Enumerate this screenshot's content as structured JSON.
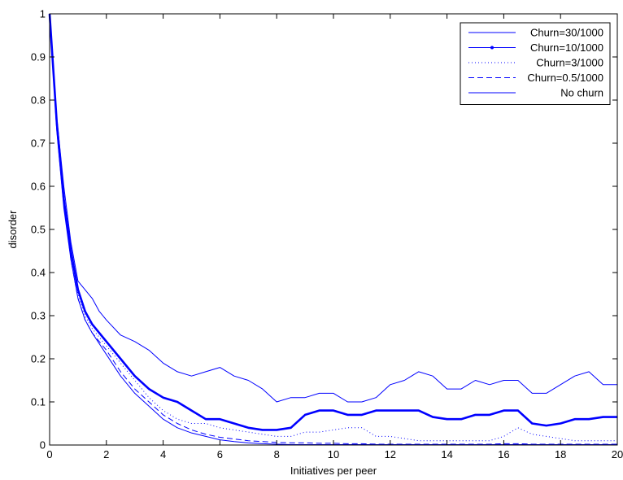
{
  "chart_data": {
    "type": "line",
    "title": "",
    "xlabel": "Initiatives per peer",
    "ylabel": "disorder",
    "xlim": [
      0,
      20
    ],
    "ylim": [
      0,
      1
    ],
    "xticks": [
      0,
      2,
      4,
      6,
      8,
      10,
      12,
      14,
      16,
      18,
      20
    ],
    "yticks": [
      0,
      0.1,
      0.2,
      0.3,
      0.4,
      0.5,
      0.6,
      0.7,
      0.8,
      0.9,
      1
    ],
    "xtick_labels": [
      "0",
      "2",
      "4",
      "6",
      "8",
      "10",
      "12",
      "14",
      "16",
      "18",
      "20"
    ],
    "ytick_labels": [
      "0",
      "0.1",
      "0.2",
      "0.3",
      "0.4",
      "0.5",
      "0.6",
      "0.7",
      "0.8",
      "0.9",
      "1"
    ],
    "grid": false,
    "legend_position": "top-right",
    "line_color": "#0000ff",
    "series": [
      {
        "name": "Churn=30/1000",
        "style": "solid-thin",
        "x": [
          0,
          0.25,
          0.5,
          0.75,
          1,
          1.25,
          1.5,
          1.75,
          2,
          2.5,
          3,
          3.5,
          4,
          4.5,
          5,
          5.5,
          6,
          6.5,
          7,
          7.5,
          8,
          8.5,
          9,
          9.5,
          10,
          10.5,
          11,
          11.5,
          12,
          12.5,
          13,
          13.5,
          14,
          14.5,
          15,
          15.5,
          16,
          16.5,
          17,
          17.5,
          18,
          18.5,
          19,
          19.5,
          20
        ],
        "y": [
          1.0,
          0.76,
          0.6,
          0.47,
          0.38,
          0.36,
          0.34,
          0.31,
          0.29,
          0.255,
          0.24,
          0.22,
          0.19,
          0.17,
          0.16,
          0.17,
          0.18,
          0.16,
          0.15,
          0.13,
          0.1,
          0.11,
          0.11,
          0.12,
          0.12,
          0.1,
          0.1,
          0.11,
          0.14,
          0.15,
          0.17,
          0.16,
          0.13,
          0.13,
          0.15,
          0.14,
          0.15,
          0.15,
          0.12,
          0.12,
          0.14,
          0.16,
          0.17,
          0.14,
          0.14
        ]
      },
      {
        "name": "Churn=10/1000",
        "style": "solid-thick",
        "x": [
          0,
          0.25,
          0.5,
          0.75,
          1,
          1.25,
          1.5,
          1.75,
          2,
          2.5,
          3,
          3.5,
          4,
          4.5,
          5,
          5.5,
          6,
          6.5,
          7,
          7.5,
          8,
          8.5,
          9,
          9.5,
          10,
          10.5,
          11,
          11.5,
          12,
          12.5,
          13,
          13.5,
          14,
          14.5,
          15,
          15.5,
          16,
          16.5,
          17,
          17.5,
          18,
          18.5,
          19,
          19.5,
          20
        ],
        "y": [
          1.0,
          0.75,
          0.57,
          0.45,
          0.36,
          0.31,
          0.28,
          0.26,
          0.24,
          0.2,
          0.16,
          0.13,
          0.11,
          0.1,
          0.08,
          0.06,
          0.06,
          0.05,
          0.04,
          0.035,
          0.035,
          0.04,
          0.07,
          0.08,
          0.08,
          0.07,
          0.07,
          0.08,
          0.08,
          0.08,
          0.08,
          0.065,
          0.06,
          0.06,
          0.07,
          0.07,
          0.08,
          0.08,
          0.05,
          0.045,
          0.05,
          0.06,
          0.06,
          0.065,
          0.065
        ]
      },
      {
        "name": "Churn=3/1000",
        "style": "dotted",
        "x": [
          0,
          0.25,
          0.5,
          0.75,
          1,
          1.25,
          1.5,
          1.75,
          2,
          2.5,
          3,
          3.5,
          4,
          4.5,
          5,
          5.5,
          6,
          6.5,
          7,
          7.5,
          8,
          8.5,
          9,
          9.5,
          10,
          10.5,
          11,
          11.5,
          12,
          12.5,
          13,
          13.5,
          14,
          14.5,
          15,
          15.5,
          16,
          16.5,
          17,
          17.5,
          18,
          18.5,
          19,
          19.5,
          20
        ],
        "y": [
          1.0,
          0.74,
          0.56,
          0.44,
          0.35,
          0.3,
          0.27,
          0.25,
          0.23,
          0.19,
          0.15,
          0.11,
          0.08,
          0.06,
          0.05,
          0.05,
          0.04,
          0.035,
          0.03,
          0.025,
          0.02,
          0.02,
          0.03,
          0.03,
          0.035,
          0.04,
          0.04,
          0.02,
          0.02,
          0.015,
          0.01,
          0.01,
          0.01,
          0.01,
          0.01,
          0.01,
          0.02,
          0.04,
          0.025,
          0.02,
          0.015,
          0.01,
          0.01,
          0.01,
          0.01
        ]
      },
      {
        "name": "Churn=0.5/1000",
        "style": "dashed",
        "x": [
          0,
          0.25,
          0.5,
          0.75,
          1,
          1.25,
          1.5,
          1.75,
          2,
          2.5,
          3,
          3.5,
          4,
          4.5,
          5,
          5.5,
          6,
          6.5,
          7,
          7.5,
          8,
          8.5,
          9,
          9.5,
          10,
          10.5,
          11,
          11.5,
          12,
          12.5,
          13,
          13.5,
          14,
          14.5,
          15,
          15.5,
          16,
          16.5,
          17,
          17.5,
          18,
          18.5,
          19,
          19.5,
          20
        ],
        "y": [
          1.0,
          0.74,
          0.56,
          0.43,
          0.34,
          0.29,
          0.26,
          0.24,
          0.22,
          0.17,
          0.13,
          0.1,
          0.07,
          0.05,
          0.035,
          0.025,
          0.018,
          0.014,
          0.01,
          0.008,
          0.006,
          0.005,
          0.005,
          0.004,
          0.004,
          0.003,
          0.003,
          0.002,
          0.002,
          0.002,
          0.002,
          0.002,
          0.002,
          0.002,
          0.002,
          0.002,
          0.003,
          0.003,
          0.002,
          0.002,
          0.002,
          0.002,
          0.002,
          0.002,
          0.002
        ]
      },
      {
        "name": "No churn",
        "style": "solid-thin",
        "x": [
          0,
          0.25,
          0.5,
          0.75,
          1,
          1.25,
          1.5,
          1.75,
          2,
          2.5,
          3,
          3.5,
          4,
          4.5,
          5,
          5.5,
          6,
          6.5,
          7,
          7.5,
          8,
          8.5,
          9,
          9.5,
          10,
          10.5,
          11,
          11.5,
          12,
          12.5,
          13,
          13.5,
          14,
          14.5,
          15,
          15.5,
          16,
          16.5,
          17,
          17.5,
          18,
          18.5,
          19,
          19.5,
          20
        ],
        "y": [
          1.0,
          0.73,
          0.55,
          0.43,
          0.34,
          0.29,
          0.26,
          0.235,
          0.21,
          0.16,
          0.12,
          0.09,
          0.06,
          0.04,
          0.028,
          0.02,
          0.012,
          0.008,
          0.005,
          0.003,
          0.002,
          0.001,
          0.001,
          0.001,
          0.001,
          0.001,
          0.001,
          0.001,
          0.001,
          0.001,
          0.001,
          0.001,
          0.001,
          0.001,
          0.001,
          0.001,
          0.001,
          0.001,
          0.001,
          0.001,
          0.001,
          0.001,
          0.001,
          0.001,
          0.001
        ]
      }
    ]
  }
}
